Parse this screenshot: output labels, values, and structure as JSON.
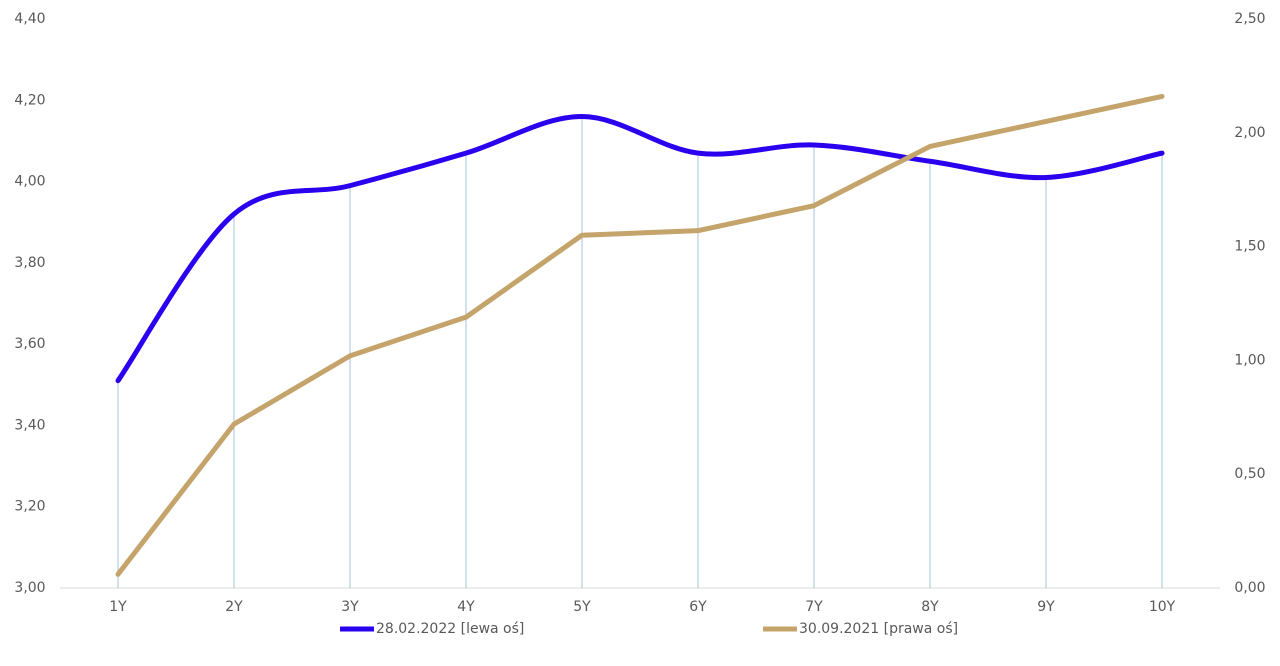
{
  "chart_data": {
    "type": "line",
    "categories": [
      "1Y",
      "2Y",
      "3Y",
      "4Y",
      "5Y",
      "6Y",
      "7Y",
      "8Y",
      "9Y",
      "10Y"
    ],
    "series": [
      {
        "name": "28.02.2022 [lewa oś]",
        "color": "#2a00ee",
        "axis": "y",
        "smooth": true,
        "values": [
          3.51,
          3.92,
          3.99,
          4.07,
          4.16,
          4.07,
          4.09,
          4.05,
          4.01,
          4.07
        ]
      },
      {
        "name": "30.09.2021 [prawa oś]",
        "color": "#c4a46a",
        "axis": "y2",
        "smooth": false,
        "values": [
          0.06,
          0.72,
          1.02,
          1.19,
          1.55,
          1.57,
          1.68,
          1.94,
          2.05,
          2.16
        ]
      }
    ],
    "ylim": [
      3.0,
      4.4
    ],
    "yticks": [
      {
        "value": 3.0,
        "label": "3,00"
      },
      {
        "value": 3.2,
        "label": "3,20"
      },
      {
        "value": 3.4,
        "label": "3,40"
      },
      {
        "value": 3.6,
        "label": "3,60"
      },
      {
        "value": 3.8,
        "label": "3,80"
      },
      {
        "value": 4.0,
        "label": "4,00"
      },
      {
        "value": 4.2,
        "label": "4,20"
      },
      {
        "value": 4.4,
        "label": "4,40"
      }
    ],
    "y2lim": [
      0,
      2.5
    ],
    "y2ticks": [
      {
        "value": 0,
        "label": "0,00"
      },
      {
        "value": 0.5,
        "label": "0,50"
      },
      {
        "value": 1.0,
        "label": "1,00"
      },
      {
        "value": 1.5,
        "label": "1,50"
      },
      {
        "value": 2.0,
        "label": "2,00"
      },
      {
        "value": 2.5,
        "label": "2,50"
      }
    ],
    "drop_lines": true
  }
}
